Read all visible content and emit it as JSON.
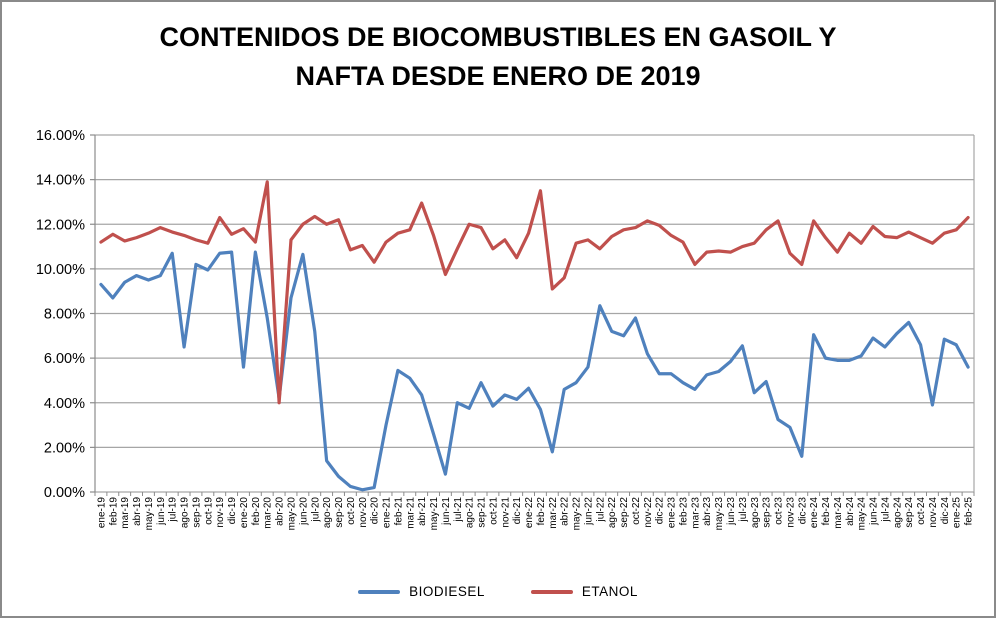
{
  "title_lines": [
    "CONTENIDOS DE BIOCOMBUSTIBLES EN GASOIL Y",
    "NAFTA DESDE ENERO DE 2019"
  ],
  "colors": {
    "biodiesel": "#4F81BD",
    "etanol": "#C0504D",
    "gridline": "#A6A6A6",
    "axis": "#8C8C8C",
    "text": "#000000",
    "frame": "#8A8A8A",
    "background": "#FFFFFF"
  },
  "y_axis": {
    "tick_labels": [
      "0.00%",
      "2.00%",
      "4.00%",
      "6.00%",
      "8.00%",
      "10.00%",
      "12.00%",
      "14.00%",
      "16.00%"
    ],
    "min": 0,
    "max": 16,
    "step": 2
  },
  "legend": [
    {
      "label": "BIODIESEL",
      "color": "#4F81BD"
    },
    {
      "label": "ETANOL",
      "color": "#C0504D"
    }
  ],
  "chart_data": {
    "type": "line",
    "title": "CONTENIDOS DE BIOCOMBUSTIBLES EN GASOIL Y NAFTA DESDE ENERO DE 2019",
    "xlabel": "",
    "ylabel": "",
    "ylim": [
      0,
      16
    ],
    "grid": true,
    "legend_position": "bottom",
    "y_tick_format": "0.00%",
    "x_tick_rotation": -90,
    "categories": [
      "ene-19",
      "feb-19",
      "mar-19",
      "abr-19",
      "may-19",
      "jun-19",
      "jul-19",
      "ago-19",
      "sep-19",
      "oct-19",
      "nov-19",
      "dic-19",
      "ene-20",
      "feb-20",
      "mar-20",
      "abr-20",
      "may-20",
      "jun-20",
      "jul-20",
      "ago-20",
      "sep-20",
      "oct-20",
      "nov-20",
      "dic-20",
      "ene-21",
      "feb-21",
      "mar-21",
      "abr-21",
      "may-21",
      "jun-21",
      "jul-21",
      "ago-21",
      "sep-21",
      "oct-21",
      "nov-21",
      "dic-21",
      "ene-22",
      "feb-22",
      "mar-22",
      "abr-22",
      "may-22",
      "jun-22",
      "jul-22",
      "ago-22",
      "sep-22",
      "oct-22",
      "nov-22",
      "dic-22",
      "ene-23",
      "feb-23",
      "mar-23",
      "abr-23",
      "may-23",
      "jun-23",
      "jul-23",
      "ago-23",
      "sep-23",
      "oct-23",
      "nov-23",
      "dic-23",
      "ene-24",
      "feb-24",
      "mar-24",
      "abr-24",
      "may-24",
      "jun-24",
      "jul-24",
      "ago-24",
      "sep-24",
      "oct-24",
      "nov-24",
      "dic-24",
      "ene-25",
      "feb-25"
    ],
    "series": [
      {
        "name": "BIODIESEL",
        "color": "#4F81BD",
        "values": [
          9.3,
          8.7,
          9.4,
          9.7,
          9.5,
          9.7,
          10.7,
          6.5,
          10.2,
          9.95,
          10.7,
          10.75,
          5.6,
          10.75,
          7.8,
          4.2,
          8.7,
          10.65,
          7.2,
          1.4,
          0.7,
          0.25,
          0.1,
          0.2,
          3.0,
          5.45,
          5.1,
          4.35,
          2.6,
          0.8,
          4.0,
          3.75,
          4.9,
          3.85,
          4.35,
          4.15,
          4.65,
          3.7,
          1.8,
          4.6,
          4.9,
          5.6,
          8.35,
          7.2,
          7.0,
          7.8,
          6.2,
          5.3,
          5.3,
          4.9,
          4.6,
          5.25,
          5.4,
          5.85,
          6.55,
          4.45,
          4.95,
          3.25,
          2.9,
          1.6,
          7.05,
          6.0,
          5.9,
          5.9,
          6.1,
          6.9,
          6.5,
          7.1,
          7.6,
          6.6,
          3.9,
          6.85,
          6.6,
          5.6
        ]
      },
      {
        "name": "ETANOL",
        "color": "#C0504D",
        "values": [
          11.2,
          11.55,
          11.25,
          11.4,
          11.6,
          11.85,
          11.65,
          11.5,
          11.3,
          11.15,
          12.3,
          11.55,
          11.8,
          11.2,
          13.9,
          4.0,
          11.3,
          12.0,
          12.35,
          12.0,
          12.2,
          10.85,
          11.05,
          10.3,
          11.2,
          11.6,
          11.75,
          12.95,
          11.5,
          9.75,
          10.9,
          12.0,
          11.85,
          10.9,
          11.3,
          10.5,
          11.6,
          13.5,
          9.1,
          9.6,
          11.15,
          11.3,
          10.9,
          11.45,
          11.75,
          11.85,
          12.15,
          11.95,
          11.5,
          11.2,
          10.2,
          10.75,
          10.8,
          10.75,
          11.0,
          11.15,
          11.75,
          12.15,
          10.7,
          10.2,
          12.15,
          11.4,
          10.75,
          11.6,
          11.15,
          11.9,
          11.45,
          11.4,
          11.65,
          11.4,
          11.15,
          11.6,
          11.75,
          12.3
        ]
      }
    ]
  }
}
